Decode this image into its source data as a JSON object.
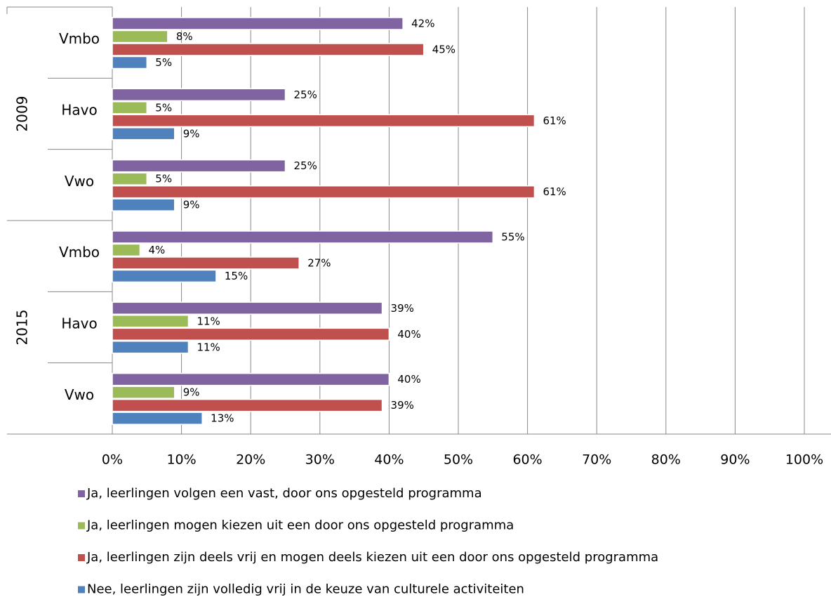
{
  "chart_data": {
    "type": "bar",
    "orientation": "horizontal",
    "category_groups": [
      {
        "label": "2009",
        "categories": [
          "Vmbo",
          "Havo",
          "Vwo"
        ]
      },
      {
        "label": "2015",
        "categories": [
          "Vmbo",
          "Havo",
          "Vwo"
        ]
      }
    ],
    "series": [
      {
        "name": "Ja, leerlingen volgen een vast, door ons opgesteld programma",
        "color": "#8064a2",
        "values": [
          42,
          25,
          25,
          55,
          39,
          40
        ],
        "value_labels": [
          "42%",
          "25%",
          "25%",
          "55%",
          "39%",
          "40%"
        ]
      },
      {
        "name": "Ja, leerlingen mogen kiezen uit een door ons opgesteld programma",
        "color": "#9bbb59",
        "values": [
          8,
          5,
          5,
          4,
          11,
          9
        ],
        "value_labels": [
          "8%",
          "5%",
          "5%",
          "4%",
          "11%",
          "9%"
        ]
      },
      {
        "name": "Ja, leerlingen zijn deels vrij en mogen deels kiezen uit een door ons opgesteld programma",
        "color": "#c0504d",
        "values": [
          45,
          61,
          61,
          27,
          40,
          39
        ],
        "value_labels": [
          "45%",
          "61%",
          "61%",
          "27%",
          "40%",
          "39%"
        ]
      },
      {
        "name": "Nee, leerlingen zijn volledig vrij in de keuze van culturele activiteiten",
        "color": "#4f81bd",
        "values": [
          5,
          9,
          9,
          15,
          11,
          13
        ],
        "value_labels": [
          "5%",
          "9%",
          "9%",
          "15%",
          "11%",
          "13%"
        ]
      }
    ],
    "xlim": [
      0,
      100
    ],
    "xticks": [
      {
        "value": 0,
        "label": "0%"
      },
      {
        "value": 10,
        "label": "10%"
      },
      {
        "value": 20,
        "label": "20%"
      },
      {
        "value": 30,
        "label": "30%"
      },
      {
        "value": 40,
        "label": "40%"
      },
      {
        "value": 50,
        "label": "50%"
      },
      {
        "value": 60,
        "label": "60%"
      },
      {
        "value": 70,
        "label": "70%"
      },
      {
        "value": 80,
        "label": "80%"
      },
      {
        "value": 90,
        "label": "90%"
      },
      {
        "value": 100,
        "label": "100%"
      }
    ],
    "grid": true,
    "legend": "bottom"
  }
}
